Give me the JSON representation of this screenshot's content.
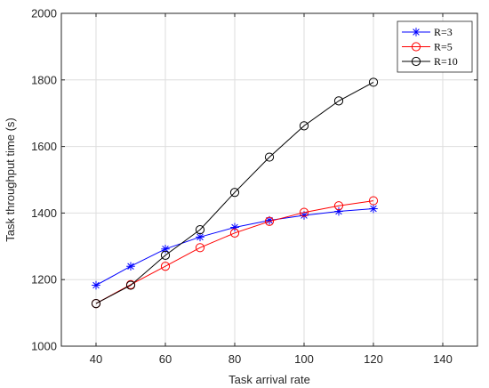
{
  "chart_data": {
    "type": "line",
    "title": "",
    "xlabel": "Task arrival rate",
    "ylabel": "Task throughput time (s)",
    "xlim": [
      30,
      150
    ],
    "ylim": [
      1000,
      2000
    ],
    "xticks": [
      40,
      60,
      80,
      100,
      120,
      140
    ],
    "yticks": [
      1000,
      1200,
      1400,
      1600,
      1800,
      2000
    ],
    "grid": true,
    "legend_position": "top-right",
    "x": [
      40,
      50,
      60,
      70,
      80,
      90,
      100,
      110,
      120
    ],
    "series": [
      {
        "name": "R=3",
        "color": "#0000ff",
        "marker": "asterisk",
        "values": [
          1183,
          1240,
          1292,
          1328,
          1357,
          1378,
          1393,
          1405,
          1413
        ]
      },
      {
        "name": "R=5",
        "color": "#ff0000",
        "marker": "circle",
        "values": [
          1128,
          1185,
          1240,
          1296,
          1340,
          1375,
          1402,
          1422,
          1437
        ]
      },
      {
        "name": "R=10",
        "color": "#000000",
        "marker": "circle",
        "values": [
          1128,
          1183,
          1273,
          1350,
          1462,
          1568,
          1662,
          1737,
          1793
        ]
      }
    ]
  }
}
